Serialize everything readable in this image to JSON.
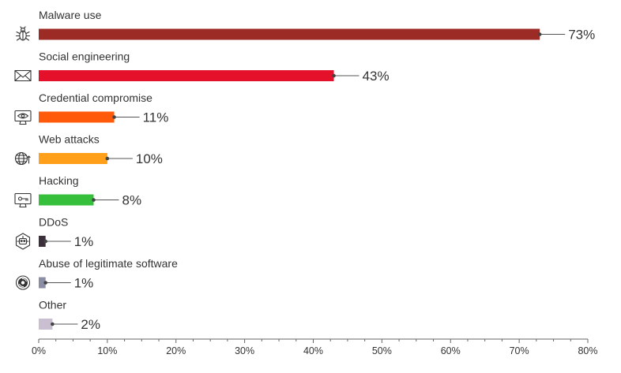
{
  "chart_data": {
    "type": "bar",
    "orientation": "horizontal",
    "title": "",
    "xlabel": "",
    "ylabel": "",
    "categories": [
      "Malware use",
      "Social engineering",
      "Credential compromise",
      "Web attacks",
      "Hacking",
      "DDoS",
      "Abuse of legitimate software",
      "Other"
    ],
    "values": [
      73,
      43,
      11,
      10,
      8,
      1,
      1,
      2
    ],
    "value_labels": [
      "73%",
      "43%",
      "11%",
      "10%",
      "8%",
      "1%",
      "1%",
      "2%"
    ],
    "colors": [
      "#9c2a25",
      "#e5102a",
      "#ff5a0a",
      "#ff9f1a",
      "#36bf3a",
      "#3a2f3a",
      "#8a8da3",
      "#c9bfd0"
    ],
    "icons": [
      "bug-icon",
      "envelope-icon",
      "monitor-eye-icon",
      "globe-icon",
      "monitor-key-icon",
      "robot-icon",
      "disc-icon",
      "none"
    ],
    "xlim": [
      0,
      80
    ],
    "xticks": [
      0,
      10,
      20,
      30,
      40,
      50,
      60,
      70,
      80
    ],
    "xtick_labels": [
      "0%",
      "10%",
      "20%",
      "30%",
      "40%",
      "50%",
      "60%",
      "70%",
      "80%"
    ],
    "grid": false,
    "label_color": "#333333",
    "axis_color": "#666666"
  }
}
